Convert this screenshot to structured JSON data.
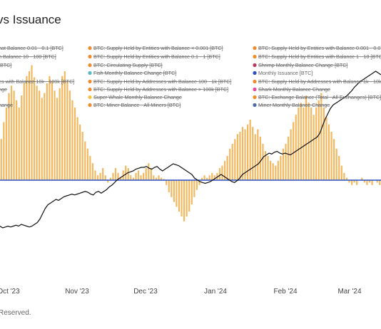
{
  "page": {
    "title_fragment": "vs Issuance",
    "footer_fragment": "Reserved."
  },
  "colors": {
    "bar": "#f3b860",
    "issuance": "#2b51c6",
    "price": "#111111",
    "legend_orange": "#f08c2e",
    "legend_teal": "#5ab7c0",
    "legend_blue": "#2b51c6",
    "legend_shrimp": "#b53a5c",
    "legend_pink": "#e64aa0",
    "legend_yellow": "#f5c33b",
    "legend_steel": "#4a6fa5"
  },
  "chart_data": {
    "type": "bar",
    "x_ticks": [
      "Oct '23",
      "Nov '23",
      "Dec '23",
      "Jan '24",
      "Feb '24",
      "Mar '24"
    ],
    "legend": [
      {
        "label": "hat Balance 0.01 - 0.1 [BTC]",
        "color": "#f08c2e",
        "struck": true
      },
      {
        "label": "BTC: Supply Held by Entities with Balance < 0.001 [BTC]",
        "color": "#f08c2e",
        "struck": true
      },
      {
        "label": "BTC: Supply Held by Entities with Balance 0.001 - 0.0",
        "color": "#f08c2e",
        "struck": true
      },
      {
        "label": "h Balance 10 - 100 [BTC]",
        "color": "#f08c2e",
        "struck": true
      },
      {
        "label": "BTC: Supply Held by Entities with Balance 0.1 - 1 [BTC]",
        "color": "#f08c2e",
        "struck": true
      },
      {
        "label": "BTC: Supply Held by Entities with Balance 1 - 10 [BTC",
        "color": "#f08c2e",
        "struck": true
      },
      {
        "label": "[BTC]",
        "color": "#f08c2e",
        "struck": true
      },
      {
        "label": "BTC: Circulating Supply [BTC]",
        "color": "#f08c2e",
        "struck": true
      },
      {
        "label": "Shrimp Monthly Balance Change [BTC]",
        "color": "#b53a5c",
        "struck": true
      },
      {
        "label": "Fish Monthly Balance Change [BTC]",
        "color": "#5ab7c0",
        "struck": true
      },
      {
        "label": "Monthly Issuance [BTC]",
        "color": "#2b51c6",
        "struck": false
      },
      {
        "label": "es with Balance 10k - 100k [BTC]",
        "color": "#f08c2e",
        "struck": true
      },
      {
        "label": "BTC: Supply Held by Addresses with Balance 100 - 1k [BTC]",
        "color": "#f08c2e",
        "struck": true
      },
      {
        "label": "BTC: Supply Held by Addresses with Balance 1k - 10k",
        "color": "#f08c2e",
        "struck": true
      },
      {
        "label": "nge",
        "color": "#f08c2e",
        "struck": true
      },
      {
        "label": "BTC: Supply Held by Addresses with Balance > 100k [BTC]",
        "color": "#f08c2e",
        "struck": true
      },
      {
        "label": "Shark Monthly Balance Change",
        "color": "#e64aa0",
        "struck": true
      },
      {
        "label": "Super Whale Monthly Balance Change",
        "color": "#f5c33b",
        "struck": true
      },
      {
        "label": "BTC: Exchange Balance (Total - All Exchanges) [BTC]",
        "color": "#f08c2e",
        "struck": true
      },
      {
        "label": "hange",
        "color": "#f08c2e",
        "struck": true
      },
      {
        "label": "BTC: Miner Balance - All Miners [BTC]",
        "color": "#f08c2e",
        "struck": true
      },
      {
        "label": "Miner Monthly Balance Change",
        "color": "#4a6fa5",
        "struck": true
      }
    ],
    "bars_relative": [
      0.34,
      0.48,
      0.6,
      0.72,
      0.78,
      0.74,
      0.66,
      0.6,
      0.7,
      0.8,
      0.86,
      0.9,
      0.95,
      0.85,
      0.78,
      0.74,
      0.68,
      0.72,
      0.8,
      0.86,
      0.82,
      0.74,
      0.68,
      0.76,
      0.86,
      0.9,
      0.82,
      0.74,
      0.66,
      0.6,
      0.52,
      0.46,
      0.4,
      0.32,
      0.26,
      0.2,
      0.14,
      0.08,
      0.04,
      0.06,
      0.1,
      0.04,
      -0.02,
      0.02,
      0.06,
      0.1,
      0.06,
      0.02,
      0.08,
      0.12,
      0.1,
      0.04,
      0.02,
      0.06,
      0.08,
      0.04,
      0.06,
      0.1,
      0.14,
      0.1,
      0.04,
      0.02,
      0.04,
      0.02,
      0.01,
      -0.04,
      -0.1,
      -0.14,
      -0.18,
      -0.22,
      -0.26,
      -0.3,
      -0.34,
      -0.3,
      -0.26,
      -0.2,
      -0.14,
      -0.08,
      -0.04,
      0.02,
      0.04,
      0.02,
      0.04,
      0.06,
      0.04,
      0.06,
      0.1,
      0.12,
      0.16,
      0.2,
      0.26,
      0.3,
      0.34,
      0.38,
      0.4,
      0.44,
      0.42,
      0.46,
      0.5,
      0.44,
      0.38,
      0.42,
      0.36,
      0.3,
      0.24,
      0.2,
      0.16,
      0.14,
      0.12,
      0.16,
      0.2,
      0.26,
      0.3,
      0.36,
      0.42,
      0.48,
      0.54,
      0.6,
      0.64,
      0.6,
      0.7,
      0.64,
      0.6,
      0.54,
      0.6,
      0.66,
      0.72,
      0.6,
      0.52,
      0.46,
      0.4,
      0.34,
      0.26,
      0.2,
      0.12,
      0.06,
      0.02,
      -0.02,
      -0.04,
      -0.02,
      -0.04,
      0.0,
      0.02,
      -0.02,
      -0.04,
      -0.02,
      -0.04,
      0.0,
      -0.02,
      -0.04
    ],
    "price_relative": [
      0.06,
      0.04,
      0.05,
      0.06,
      0.05,
      0.06,
      0.07,
      0.06,
      0.08,
      0.07,
      0.06,
      0.05,
      0.06,
      0.08,
      0.1,
      0.14,
      0.2,
      0.26,
      0.3,
      0.32,
      0.34,
      0.36,
      0.35,
      0.37,
      0.39,
      0.4,
      0.41,
      0.42,
      0.41,
      0.42,
      0.43,
      0.44,
      0.45,
      0.44,
      0.42,
      0.41,
      0.44,
      0.45,
      0.43,
      0.45,
      0.47,
      0.5,
      0.52,
      0.55,
      0.58,
      0.6,
      0.62,
      0.64,
      0.66,
      0.67,
      0.68,
      0.7,
      0.71,
      0.72,
      0.72,
      0.73,
      0.71,
      0.7,
      0.72,
      0.73,
      0.7,
      0.68,
      0.7,
      0.72,
      0.74,
      0.76,
      0.75,
      0.74,
      0.72,
      0.7,
      0.68,
      0.66,
      0.64,
      0.6,
      0.58,
      0.56,
      0.55,
      0.54,
      0.55,
      0.56,
      0.58,
      0.6,
      0.62,
      0.64,
      0.62,
      0.6,
      0.58,
      0.56,
      0.55,
      0.57,
      0.6,
      0.64,
      0.66,
      0.68,
      0.7,
      0.72,
      0.74,
      0.76,
      0.8,
      0.84,
      0.86,
      0.88,
      0.87,
      0.89,
      0.9,
      0.88,
      0.87,
      0.88,
      0.87,
      0.86,
      0.88,
      0.9,
      0.92,
      0.94,
      0.96,
      0.98,
      1.0,
      1.02,
      1.04,
      1.06,
      1.1,
      1.18,
      1.26,
      1.32,
      1.38,
      1.42,
      1.44,
      1.46,
      1.48,
      1.5,
      1.52,
      1.55,
      1.58,
      1.62,
      1.65,
      1.68,
      1.7,
      1.72,
      1.74,
      1.76,
      1.78,
      1.8,
      1.78,
      1.76
    ]
  }
}
